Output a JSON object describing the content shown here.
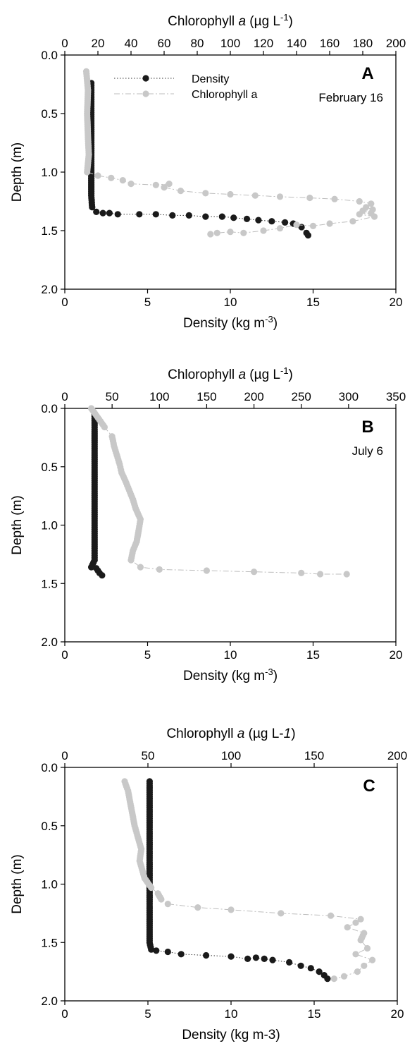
{
  "chart_data": [
    {
      "type": "scatter",
      "panel": "A",
      "date": "February 16",
      "xlabel_bottom": "Density (kg m-3)",
      "xlabel_top": "Chlorophyll a (µg L-1)",
      "ylabel": "Depth (m)",
      "xlim_bottom": [
        0,
        20
      ],
      "xlim_top": [
        0,
        200
      ],
      "ylim": [
        2.0,
        0.0
      ],
      "xticks_bottom": [
        "0",
        "5",
        "10",
        "15",
        "20"
      ],
      "xticks_top": [
        "0",
        "20",
        "40",
        "60",
        "80",
        "100",
        "120",
        "140",
        "160",
        "180",
        "200"
      ],
      "yticks": [
        "0.0",
        "0.5",
        "1.0",
        "1.5",
        "2.0"
      ],
      "legend": [
        {
          "label": "Density",
          "color": "#1a1a1a",
          "style": "dotted"
        },
        {
          "label": "Chlorophyll a",
          "color": "#c8c8c8",
          "style": "dash-dot"
        }
      ],
      "series": [
        {
          "name": "Density",
          "axis": "bottom",
          "color": "#1a1a1a",
          "points": [
            [
              1.6,
              0.24
            ],
            [
              1.6,
              0.4
            ],
            [
              1.6,
              0.6
            ],
            [
              1.6,
              0.8
            ],
            [
              1.6,
              1.0
            ],
            [
              1.6,
              1.2
            ],
            [
              1.65,
              1.3
            ],
            [
              1.9,
              1.34
            ],
            [
              2.3,
              1.35
            ],
            [
              2.7,
              1.35
            ],
            [
              3.2,
              1.36
            ],
            [
              4.5,
              1.36
            ],
            [
              5.5,
              1.36
            ],
            [
              6.5,
              1.37
            ],
            [
              7.5,
              1.37
            ],
            [
              8.5,
              1.38
            ],
            [
              9.5,
              1.38
            ],
            [
              10.2,
              1.39
            ],
            [
              11,
              1.4
            ],
            [
              11.7,
              1.41
            ],
            [
              12.5,
              1.42
            ],
            [
              13.3,
              1.43
            ],
            [
              13.8,
              1.44
            ],
            [
              14.3,
              1.47
            ],
            [
              14.6,
              1.52
            ],
            [
              14.7,
              1.54
            ]
          ]
        },
        {
          "name": "Chlorophyll a",
          "axis": "top",
          "color": "#c8c8c8",
          "points": [
            [
              13,
              0.14
            ],
            [
              14,
              0.3
            ],
            [
              13.5,
              0.5
            ],
            [
              14,
              0.7
            ],
            [
              14.5,
              0.85
            ],
            [
              13.5,
              1.0
            ],
            [
              20,
              1.03
            ],
            [
              28,
              1.05
            ],
            [
              35,
              1.07
            ],
            [
              40,
              1.1
            ],
            [
              55,
              1.11
            ],
            [
              63,
              1.1
            ],
            [
              60,
              1.13
            ],
            [
              70,
              1.16
            ],
            [
              85,
              1.18
            ],
            [
              100,
              1.19
            ],
            [
              115,
              1.2
            ],
            [
              130,
              1.21
            ],
            [
              148,
              1.22
            ],
            [
              163,
              1.23
            ],
            [
              178,
              1.25
            ],
            [
              185,
              1.27
            ],
            [
              182,
              1.3
            ],
            [
              186,
              1.32
            ],
            [
              180,
              1.33
            ],
            [
              185,
              1.35
            ],
            [
              178,
              1.36
            ],
            [
              187,
              1.38
            ],
            [
              174,
              1.42
            ],
            [
              160,
              1.44
            ],
            [
              150,
              1.46
            ],
            [
              140,
              1.45
            ],
            [
              130,
              1.48
            ],
            [
              120,
              1.5
            ],
            [
              108,
              1.52
            ],
            [
              100,
              1.51
            ],
            [
              92,
              1.52
            ],
            [
              88,
              1.53
            ]
          ]
        }
      ]
    },
    {
      "type": "scatter",
      "panel": "B",
      "date": "July 6",
      "xlabel_bottom": "Density (kg m-3)",
      "xlabel_top": "Chlorophyll a (µg L-1)",
      "ylabel": "Depth (m)",
      "xlim_bottom": [
        0,
        20
      ],
      "xlim_top": [
        0,
        350
      ],
      "ylim": [
        2.0,
        0.0
      ],
      "xticks_bottom": [
        "0",
        "5",
        "10",
        "15",
        "20"
      ],
      "xticks_top": [
        "0",
        "50",
        "100",
        "150",
        "200",
        "250",
        "300",
        "350"
      ],
      "yticks": [
        "0.0",
        "0.5",
        "1.0",
        "1.5",
        "2.0"
      ],
      "series": [
        {
          "name": "Density",
          "axis": "bottom",
          "color": "#1a1a1a",
          "points": [
            [
              1.8,
              0.05
            ],
            [
              1.8,
              0.2
            ],
            [
              1.8,
              0.4
            ],
            [
              1.8,
              0.6
            ],
            [
              1.8,
              0.8
            ],
            [
              1.8,
              1.0
            ],
            [
              1.8,
              1.2
            ],
            [
              1.8,
              1.3
            ],
            [
              1.6,
              1.36
            ],
            [
              1.9,
              1.37
            ],
            [
              2.0,
              1.39
            ],
            [
              2.1,
              1.41
            ],
            [
              2.25,
              1.43
            ]
          ]
        },
        {
          "name": "Chlorophyll a",
          "axis": "top",
          "color": "#c8c8c8",
          "points": [
            [
              28,
              0.0
            ],
            [
              35,
              0.08
            ],
            [
              42,
              0.16
            ],
            [
              50,
              0.24
            ],
            [
              52,
              0.32
            ],
            [
              55,
              0.4
            ],
            [
              58,
              0.48
            ],
            [
              60,
              0.55
            ],
            [
              64,
              0.62
            ],
            [
              68,
              0.7
            ],
            [
              72,
              0.78
            ],
            [
              75,
              0.86
            ],
            [
              80,
              0.95
            ],
            [
              78,
              1.05
            ],
            [
              76,
              1.14
            ],
            [
              72,
              1.22
            ],
            [
              70,
              1.3
            ],
            [
              80,
              1.36
            ],
            [
              100,
              1.38
            ],
            [
              150,
              1.39
            ],
            [
              200,
              1.4
            ],
            [
              250,
              1.41
            ],
            [
              270,
              1.42
            ],
            [
              298,
              1.42
            ]
          ]
        }
      ]
    },
    {
      "type": "scatter",
      "panel": "C",
      "date": "",
      "xlabel_bottom": "Density (kg m-3)",
      "xlabel_top": "Chlorophyll a (µg L-1)",
      "ylabel": "Depth (m)",
      "xlim_bottom": [
        0,
        20
      ],
      "xlim_top": [
        0,
        200
      ],
      "ylim": [
        2.0,
        0.0
      ],
      "xticks_bottom": [
        "0",
        "5",
        "10",
        "15",
        "20"
      ],
      "xticks_top": [
        "0",
        "50",
        "100",
        "150",
        "200"
      ],
      "yticks": [
        "0.0",
        "0.5",
        "1.0",
        "1.5",
        "2.0"
      ],
      "series": [
        {
          "name": "Density",
          "axis": "bottom",
          "color": "#1a1a1a",
          "points": [
            [
              5.1,
              0.12
            ],
            [
              5.1,
              0.4
            ],
            [
              5.1,
              0.7
            ],
            [
              5.1,
              1.0
            ],
            [
              5.1,
              1.3
            ],
            [
              5.1,
              1.5
            ],
            [
              5.2,
              1.56
            ],
            [
              5.5,
              1.57
            ],
            [
              6.2,
              1.58
            ],
            [
              7,
              1.6
            ],
            [
              8.5,
              1.61
            ],
            [
              10,
              1.62
            ],
            [
              11,
              1.64
            ],
            [
              11.5,
              1.63
            ],
            [
              12,
              1.64
            ],
            [
              12.5,
              1.65
            ],
            [
              13.5,
              1.67
            ],
            [
              14.2,
              1.7
            ],
            [
              14.8,
              1.72
            ],
            [
              15.3,
              1.75
            ],
            [
              15.6,
              1.78
            ],
            [
              15.8,
              1.81
            ]
          ]
        },
        {
          "name": "Chlorophyll a",
          "axis": "top",
          "color": "#c8c8c8",
          "points": [
            [
              36,
              0.12
            ],
            [
              38,
              0.2
            ],
            [
              40,
              0.35
            ],
            [
              42,
              0.5
            ],
            [
              44,
              0.6
            ],
            [
              46,
              0.7
            ],
            [
              45,
              0.8
            ],
            [
              48,
              0.95
            ],
            [
              52,
              1.03
            ],
            [
              56,
              1.08
            ],
            [
              58,
              1.13
            ],
            [
              62,
              1.17
            ],
            [
              80,
              1.2
            ],
            [
              100,
              1.22
            ],
            [
              130,
              1.25
            ],
            [
              160,
              1.27
            ],
            [
              178,
              1.3
            ],
            [
              175,
              1.33
            ],
            [
              170,
              1.37
            ],
            [
              180,
              1.42
            ],
            [
              178,
              1.48
            ],
            [
              182,
              1.55
            ],
            [
              175,
              1.6
            ],
            [
              185,
              1.65
            ],
            [
              180,
              1.7
            ],
            [
              176,
              1.75
            ],
            [
              168,
              1.79
            ],
            [
              162,
              1.81
            ]
          ]
        }
      ]
    }
  ]
}
